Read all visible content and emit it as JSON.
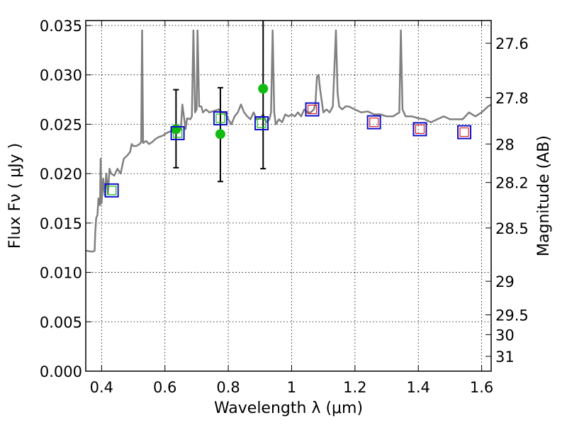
{
  "chart_data": {
    "type": "scatter",
    "title": "",
    "xlabel": "Wavelength  λ (μm)",
    "ylabel": "Flux  Fν  ( μJy )",
    "y2label": "Magnitude (AB)",
    "xlim": [
      0.35,
      1.63
    ],
    "ylim": [
      0.0,
      0.0355
    ],
    "grid": true,
    "x_ticks": [
      0.4,
      0.6,
      0.8,
      1.0,
      1.2,
      1.4,
      1.6
    ],
    "x_tick_labels": [
      "0.4",
      "0.6",
      "0.8",
      "1",
      "1.2",
      "1.4",
      "1.6"
    ],
    "y_ticks": [
      0.0,
      0.005,
      0.01,
      0.015,
      0.02,
      0.025,
      0.03,
      0.035
    ],
    "y_tick_labels": [
      "0.000",
      "0.005",
      "0.010",
      "0.015",
      "0.020",
      "0.025",
      "0.030",
      "0.035"
    ],
    "y2_ticks": [
      {
        "label": "27.6",
        "flux": 0.0332
      },
      {
        "label": "27.8",
        "flux": 0.0277
      },
      {
        "label": "28",
        "flux": 0.023
      },
      {
        "label": "28.2",
        "flux": 0.0191
      },
      {
        "label": "28.5",
        "flux": 0.0145
      },
      {
        "label": "29",
        "flux": 0.0091
      },
      {
        "label": "29.5",
        "flux": 0.0057
      },
      {
        "label": "30",
        "flux": 0.0037
      },
      {
        "label": "31",
        "flux": 0.0015
      }
    ],
    "colors": {
      "spectrum": "#808080",
      "observed": "#11bb11",
      "error_bar": "#000000",
      "model_box": "#1010cc",
      "inner_green": "#11bb11",
      "inner_red": "#dd2222"
    },
    "series": [
      {
        "kind": "line",
        "points": [
          [
            0.35,
            0.0122
          ],
          [
            0.37,
            0.0121
          ],
          [
            0.378,
            0.0122
          ],
          [
            0.38,
            0.014
          ],
          [
            0.383,
            0.0155
          ],
          [
            0.387,
            0.0158
          ],
          [
            0.39,
            0.0175
          ],
          [
            0.395,
            0.0168
          ],
          [
            0.397,
            0.0215
          ],
          [
            0.4,
            0.017
          ],
          [
            0.405,
            0.0195
          ],
          [
            0.41,
            0.0178
          ],
          [
            0.415,
            0.02
          ],
          [
            0.42,
            0.018
          ],
          [
            0.425,
            0.0205
          ],
          [
            0.43,
            0.02
          ],
          [
            0.44,
            0.0198
          ],
          [
            0.45,
            0.0205
          ],
          [
            0.46,
            0.02
          ],
          [
            0.47,
            0.0215
          ],
          [
            0.48,
            0.0218
          ],
          [
            0.49,
            0.0222
          ],
          [
            0.495,
            0.023
          ],
          [
            0.5,
            0.0228
          ],
          [
            0.51,
            0.0228
          ],
          [
            0.52,
            0.023
          ],
          [
            0.525,
            0.0232
          ],
          [
            0.528,
            0.0345
          ],
          [
            0.531,
            0.0231
          ],
          [
            0.54,
            0.0233
          ],
          [
            0.55,
            0.023
          ],
          [
            0.56,
            0.0232
          ],
          [
            0.57,
            0.0235
          ],
          [
            0.58,
            0.0237
          ],
          [
            0.59,
            0.0238
          ],
          [
            0.6,
            0.024
          ],
          [
            0.61,
            0.0242
          ],
          [
            0.62,
            0.0243
          ],
          [
            0.63,
            0.0242
          ],
          [
            0.64,
            0.0243
          ],
          [
            0.65,
            0.0245
          ],
          [
            0.655,
            0.027
          ],
          [
            0.66,
            0.0258
          ],
          [
            0.665,
            0.0245
          ],
          [
            0.67,
            0.0256
          ],
          [
            0.68,
            0.0255
          ],
          [
            0.685,
            0.0258
          ],
          [
            0.69,
            0.0345
          ],
          [
            0.695,
            0.0262
          ],
          [
            0.7,
            0.0265
          ],
          [
            0.703,
            0.0345
          ],
          [
            0.708,
            0.0268
          ],
          [
            0.715,
            0.0268
          ],
          [
            0.72,
            0.0262
          ],
          [
            0.73,
            0.0265
          ],
          [
            0.74,
            0.0262
          ],
          [
            0.75,
            0.0263
          ],
          [
            0.76,
            0.0264
          ],
          [
            0.77,
            0.0265
          ],
          [
            0.78,
            0.0262
          ],
          [
            0.79,
            0.0262
          ],
          [
            0.8,
            0.0255
          ],
          [
            0.81,
            0.025
          ],
          [
            0.82,
            0.0258
          ],
          [
            0.83,
            0.0262
          ],
          [
            0.84,
            0.027
          ],
          [
            0.85,
            0.0262
          ],
          [
            0.86,
            0.0258
          ],
          [
            0.87,
            0.0255
          ],
          [
            0.88,
            0.0262
          ],
          [
            0.89,
            0.0255
          ],
          [
            0.9,
            0.0256
          ],
          [
            0.91,
            0.026
          ],
          [
            0.92,
            0.0252
          ],
          [
            0.93,
            0.0255
          ],
          [
            0.935,
            0.0262
          ],
          [
            0.94,
            0.0345
          ],
          [
            0.945,
            0.0262
          ],
          [
            0.95,
            0.025
          ],
          [
            0.96,
            0.0255
          ],
          [
            0.97,
            0.0252
          ],
          [
            0.98,
            0.026
          ],
          [
            0.99,
            0.0258
          ],
          [
            1.0,
            0.026
          ],
          [
            1.01,
            0.0258
          ],
          [
            1.02,
            0.0262
          ],
          [
            1.03,
            0.0258
          ],
          [
            1.04,
            0.0265
          ],
          [
            1.05,
            0.0262
          ],
          [
            1.06,
            0.0262
          ],
          [
            1.07,
            0.0265
          ],
          [
            1.075,
            0.027
          ],
          [
            1.08,
            0.0298
          ],
          [
            1.085,
            0.03
          ],
          [
            1.09,
            0.0285
          ],
          [
            1.1,
            0.0262
          ],
          [
            1.11,
            0.0265
          ],
          [
            1.12,
            0.0262
          ],
          [
            1.13,
            0.0268
          ],
          [
            1.14,
            0.0345
          ],
          [
            1.145,
            0.0282
          ],
          [
            1.15,
            0.0268
          ],
          [
            1.16,
            0.0265
          ],
          [
            1.17,
            0.0268
          ],
          [
            1.18,
            0.0268
          ],
          [
            1.2,
            0.0265
          ],
          [
            1.22,
            0.0262
          ],
          [
            1.24,
            0.0263
          ],
          [
            1.26,
            0.026
          ],
          [
            1.28,
            0.026
          ],
          [
            1.3,
            0.0258
          ],
          [
            1.32,
            0.0258
          ],
          [
            1.34,
            0.0262
          ],
          [
            1.345,
            0.0345
          ],
          [
            1.35,
            0.0265
          ],
          [
            1.36,
            0.0258
          ],
          [
            1.38,
            0.0258
          ],
          [
            1.4,
            0.0256
          ],
          [
            1.42,
            0.0255
          ],
          [
            1.44,
            0.0252
          ],
          [
            1.46,
            0.0255
          ],
          [
            1.48,
            0.0258
          ],
          [
            1.5,
            0.0255
          ],
          [
            1.52,
            0.0255
          ],
          [
            1.54,
            0.0255
          ],
          [
            1.56,
            0.0262
          ],
          [
            1.58,
            0.0258
          ],
          [
            1.6,
            0.0262
          ],
          [
            1.62,
            0.0268
          ],
          [
            1.63,
            0.027
          ]
        ]
      },
      {
        "kind": "points_with_errors",
        "points": [
          {
            "x": 0.635,
            "y": 0.0245,
            "err": [
              0.0206,
              0.0285
            ]
          },
          {
            "x": 0.775,
            "y": 0.024,
            "err": [
              0.0192,
              0.0287
            ]
          },
          {
            "x": 0.91,
            "y": 0.0286,
            "err": [
              0.0205,
              0.0355
            ]
          }
        ]
      },
      {
        "kind": "model_boxes",
        "points": [
          {
            "x": 0.432,
            "y": 0.0183,
            "inner": "green"
          },
          {
            "x": 0.64,
            "y": 0.0241,
            "inner": "green"
          },
          {
            "x": 0.775,
            "y": 0.0256,
            "inner": "green"
          },
          {
            "x": 0.905,
            "y": 0.0251,
            "inner": "green"
          },
          {
            "x": 1.065,
            "y": 0.0265,
            "inner": "red"
          },
          {
            "x": 1.26,
            "y": 0.0252,
            "inner": "red"
          },
          {
            "x": 1.405,
            "y": 0.0245,
            "inner": "red"
          },
          {
            "x": 1.545,
            "y": 0.0242,
            "inner": "red"
          }
        ]
      }
    ]
  }
}
